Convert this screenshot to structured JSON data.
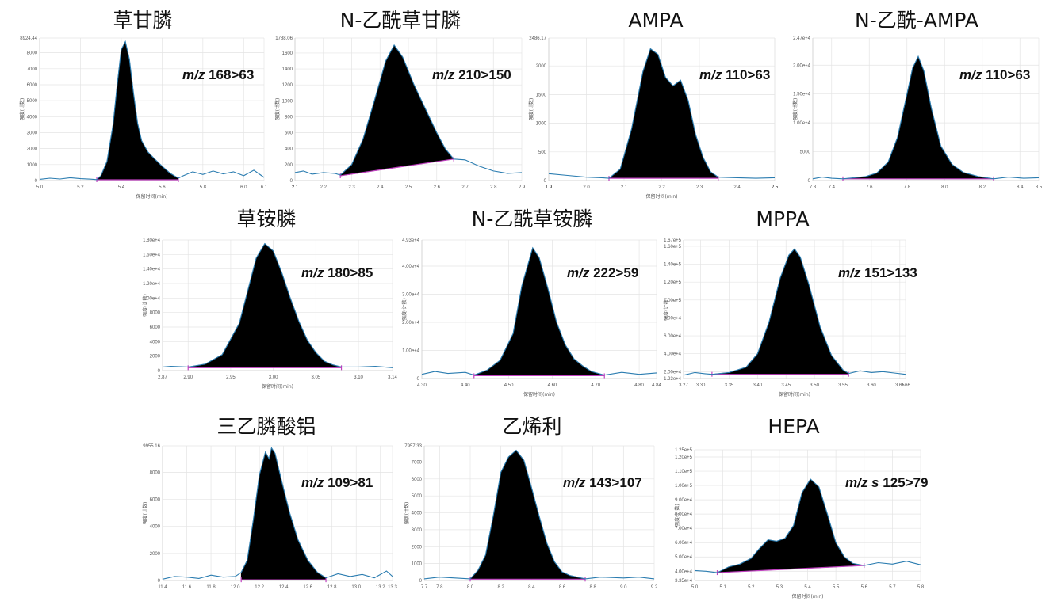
{
  "chart_data": [
    {
      "type": "line",
      "title": "草甘膦",
      "annotation_italic": "m/z",
      "annotation": "168>63",
      "xlabel": "保留时间(min)",
      "ylabel": "强度(计数)",
      "xlim": [
        5.0,
        6.1
      ],
      "ylim": [
        0,
        8924.44
      ],
      "x_ticks": [
        "5.0",
        "5.2",
        "5.4",
        "5.6",
        "5.8",
        "6.0",
        "6.1"
      ],
      "y_ticks": [
        "0",
        "1000",
        "2000",
        "3000",
        "4000",
        "5000",
        "6000",
        "7000",
        "8000",
        "8924.44"
      ],
      "peak": {
        "rt": 5.42,
        "height": 8700,
        "baseline": 50,
        "start": 5.28,
        "end": 5.68
      },
      "x": [
        5.0,
        5.05,
        5.1,
        5.15,
        5.2,
        5.25,
        5.28,
        5.3,
        5.33,
        5.36,
        5.38,
        5.4,
        5.42,
        5.44,
        5.46,
        5.48,
        5.5,
        5.53,
        5.56,
        5.6,
        5.64,
        5.68,
        5.7,
        5.75,
        5.8,
        5.85,
        5.9,
        5.95,
        6.0,
        6.05,
        6.1
      ],
      "y": [
        80,
        150,
        100,
        180,
        120,
        90,
        60,
        300,
        1200,
        3500,
        6000,
        8200,
        8700,
        7600,
        5500,
        3600,
        2500,
        1800,
        1400,
        900,
        450,
        150,
        280,
        550,
        380,
        600,
        420,
        550,
        300,
        650,
        200
      ]
    },
    {
      "type": "line",
      "title": "N-乙酰草甘膦",
      "annotation_italic": "m/z",
      "annotation": "210>150",
      "xlabel": "",
      "ylabel": "强度(计数)",
      "xlim": [
        2.1,
        2.9
      ],
      "ylim": [
        0,
        1788.06
      ],
      "x_ticks": [
        "2.1",
        "2.1",
        "2.2",
        "2.3",
        "2.4",
        "2.5",
        "2.6",
        "2.7",
        "2.8",
        "2.9"
      ],
      "y_ticks": [
        "0",
        "200",
        "400",
        "600",
        "800",
        "1000",
        "1200",
        "1400",
        "1600",
        "1788.06"
      ],
      "peak": {
        "rt": 2.45,
        "height": 1700,
        "baseline_start": 60,
        "baseline_end": 270,
        "start": 2.26,
        "end": 2.66
      },
      "x": [
        2.1,
        2.13,
        2.16,
        2.2,
        2.24,
        2.26,
        2.3,
        2.34,
        2.38,
        2.42,
        2.45,
        2.48,
        2.52,
        2.56,
        2.6,
        2.63,
        2.66,
        2.7,
        2.75,
        2.8,
        2.85,
        2.9
      ],
      "y": [
        100,
        120,
        80,
        100,
        90,
        70,
        200,
        520,
        1000,
        1500,
        1700,
        1550,
        1200,
        900,
        600,
        400,
        270,
        260,
        180,
        120,
        90,
        100
      ]
    },
    {
      "type": "line",
      "title": "AMPA",
      "annotation_italic": "m/z",
      "annotation": "110>63",
      "xlabel": "保留时间(min)",
      "ylabel": "强度(计数)",
      "xlim": [
        1.9,
        2.5
      ],
      "ylim": [
        0,
        2486.17
      ],
      "x_ticks": [
        "1.9",
        "1.9",
        "2.0",
        "2.1",
        "2.2",
        "2.3",
        "2.4",
        "2.5",
        "2.5"
      ],
      "y_ticks": [
        "0",
        "500",
        "1000",
        "1500",
        "2000",
        "2486.17"
      ],
      "peak": {
        "rt": 2.17,
        "height": 2300,
        "baseline": 40,
        "start": 2.06,
        "end": 2.35
      },
      "x": [
        1.9,
        1.95,
        2.0,
        2.04,
        2.06,
        2.09,
        2.12,
        2.15,
        2.17,
        2.19,
        2.21,
        2.23,
        2.25,
        2.27,
        2.29,
        2.31,
        2.33,
        2.35,
        2.4,
        2.45,
        2.5
      ],
      "y": [
        120,
        90,
        60,
        50,
        40,
        200,
        900,
        1900,
        2300,
        2200,
        1800,
        1650,
        1750,
        1400,
        800,
        400,
        150,
        60,
        50,
        40,
        50
      ]
    },
    {
      "type": "line",
      "title": "N-乙酰-AMPA",
      "annotation_italic": "m/z",
      "annotation": "110>63",
      "xlabel": "",
      "ylabel": "强度(计数)",
      "xlim": [
        7.3,
        8.5
      ],
      "ylim": [
        0,
        24700
      ],
      "x_ticks": [
        "7.3",
        "7.4",
        "7.6",
        "7.8",
        "8.0",
        "8.2",
        "8.4",
        "8.5"
      ],
      "y_ticks": [
        "0",
        "5000",
        "1.00e+4",
        "1.50e+4",
        "2.00e+4",
        "2.47e+4"
      ],
      "peak": {
        "rt": 7.86,
        "height": 21500,
        "baseline": 300,
        "start": 7.46,
        "end": 8.26
      },
      "x": [
        7.3,
        7.35,
        7.4,
        7.46,
        7.52,
        7.58,
        7.64,
        7.7,
        7.75,
        7.8,
        7.83,
        7.86,
        7.89,
        7.93,
        7.98,
        8.04,
        8.1,
        8.18,
        8.26,
        8.34,
        8.42,
        8.5
      ],
      "y": [
        300,
        600,
        400,
        300,
        500,
        700,
        1300,
        3200,
        7500,
        15000,
        19500,
        21500,
        19000,
        12500,
        6000,
        2800,
        1400,
        700,
        300,
        600,
        400,
        500
      ]
    },
    {
      "type": "line",
      "title": "草铵膦",
      "annotation_italic": "m/z",
      "annotation": "180>85",
      "xlabel": "保留时间(min)",
      "ylabel": "强度(计数)",
      "xlim": [
        2.87,
        3.14
      ],
      "ylim": [
        0,
        18000
      ],
      "x_ticks": [
        "2.87",
        "2.90",
        "2.95",
        "3.00",
        "3.05",
        "3.10",
        "3.14"
      ],
      "y_ticks": [
        "0",
        "2000",
        "4000",
        "6000",
        "8000",
        "1.00e+4",
        "1.20e+4",
        "1.40e+4",
        "1.60e+4",
        "1.80e+4"
      ],
      "peak": {
        "rt": 2.99,
        "height": 17500,
        "baseline": 400,
        "start": 2.9,
        "end": 3.08
      },
      "x": [
        2.87,
        2.88,
        2.9,
        2.92,
        2.94,
        2.96,
        2.97,
        2.98,
        2.99,
        3.0,
        3.01,
        3.02,
        3.03,
        3.04,
        3.05,
        3.06,
        3.07,
        3.08,
        3.1,
        3.12,
        3.14
      ],
      "y": [
        500,
        600,
        500,
        900,
        2200,
        6500,
        11000,
        15500,
        17500,
        16500,
        13500,
        10000,
        6800,
        4200,
        2500,
        1300,
        800,
        500,
        500,
        600,
        400
      ]
    },
    {
      "type": "line",
      "title": "N-乙酰草铵膦",
      "annotation_italic": "m/z",
      "annotation": "222>59",
      "xlabel": "保留时间(min)",
      "ylabel": "强度(计数)",
      "xlim": [
        4.3,
        4.84
      ],
      "ylim": [
        0,
        49300
      ],
      "x_ticks": [
        "4.30",
        "4.40",
        "4.50",
        "4.60",
        "4.70",
        "4.80",
        "4.84"
      ],
      "y_ticks": [
        "0",
        "1.00e+4",
        "2.00e+4",
        "3.00e+4",
        "4.00e+4",
        "4.93e+4"
      ],
      "peak": {
        "rt": 4.555,
        "height": 46500,
        "baseline": 1000,
        "start": 4.42,
        "end": 4.72
      },
      "x": [
        4.3,
        4.33,
        4.36,
        4.4,
        4.42,
        4.45,
        4.48,
        4.51,
        4.53,
        4.555,
        4.57,
        4.59,
        4.61,
        4.63,
        4.65,
        4.67,
        4.69,
        4.72,
        4.76,
        4.8,
        4.84
      ],
      "y": [
        1500,
        2500,
        1800,
        2200,
        1200,
        3000,
        6500,
        16000,
        33000,
        46500,
        43000,
        32000,
        20000,
        12000,
        7000,
        4500,
        2500,
        1200,
        2200,
        1500,
        2000
      ]
    },
    {
      "type": "line",
      "title": "MPPA",
      "annotation_italic": "m/z",
      "annotation": "151>133",
      "xlabel": "保留时间(min)",
      "ylabel": "强度(计数)",
      "xlim": [
        3.27,
        3.66
      ],
      "ylim": [
        12300,
        167000
      ],
      "x_ticks": [
        "3.27",
        "3.30",
        "3.35",
        "3.40",
        "3.45",
        "3.50",
        "3.55",
        "3.60",
        "3.65",
        "3.66"
      ],
      "y_ticks": [
        "1.23e+4",
        "2.00e+4",
        "4.00e+4",
        "6.00e+4",
        "8.00e+4",
        "1.00e+5",
        "1.20e+5",
        "1.40e+5",
        "1.60e+5",
        "1.67e+5"
      ],
      "peak": {
        "rt": 3.465,
        "height": 157000,
        "baseline": 17000,
        "start": 3.32,
        "end": 3.56
      },
      "x": [
        3.27,
        3.29,
        3.31,
        3.32,
        3.35,
        3.38,
        3.4,
        3.42,
        3.44,
        3.455,
        3.465,
        3.475,
        3.49,
        3.51,
        3.53,
        3.55,
        3.56,
        3.58,
        3.6,
        3.62,
        3.64,
        3.66
      ],
      "y": [
        16000,
        19000,
        17500,
        17000,
        19000,
        25000,
        40000,
        75000,
        125000,
        150000,
        157000,
        148000,
        118000,
        70000,
        38000,
        22000,
        18000,
        21000,
        19000,
        20000,
        18500,
        17000
      ]
    },
    {
      "type": "line",
      "title": "三乙膦酸铝",
      "annotation_italic": "m/z",
      "annotation": "109>81",
      "xlabel": "",
      "ylabel": "强度(计数)",
      "xlim": [
        11.4,
        13.3
      ],
      "ylim": [
        0,
        9955.16
      ],
      "x_ticks": [
        "11.4",
        "11.6",
        "11.8",
        "12.0",
        "12.2",
        "12.4",
        "12.6",
        "12.8",
        "13.0",
        "13.2",
        "13.3"
      ],
      "y_ticks": [
        "0",
        "2000",
        "4000",
        "6000",
        "8000",
        "9955.16"
      ],
      "peak": {
        "rt": 12.3,
        "height": 9800,
        "baseline": 50,
        "start": 12.05,
        "end": 12.75
      },
      "x": [
        11.4,
        11.5,
        11.6,
        11.7,
        11.8,
        11.9,
        12.0,
        12.05,
        12.1,
        12.15,
        12.2,
        12.25,
        12.28,
        12.3,
        12.33,
        12.38,
        12.45,
        12.52,
        12.6,
        12.68,
        12.75,
        12.85,
        12.95,
        13.05,
        13.15,
        13.25,
        13.3
      ],
      "y": [
        100,
        300,
        250,
        150,
        400,
        250,
        300,
        600,
        1500,
        4500,
        7800,
        9500,
        9000,
        9800,
        9400,
        7500,
        5000,
        3000,
        1500,
        600,
        200,
        500,
        300,
        450,
        200,
        700,
        300
      ]
    },
    {
      "type": "line",
      "title": "乙烯利",
      "annotation_italic": "m/z",
      "annotation": "143>107",
      "xlabel": "",
      "ylabel": "强度(计数)",
      "xlim": [
        7.7,
        9.2
      ],
      "ylim": [
        0,
        7957.33
      ],
      "x_ticks": [
        "7.7",
        "7.8",
        "8.0",
        "8.2",
        "8.4",
        "8.6",
        "8.8",
        "9.0",
        "9.2"
      ],
      "y_ticks": [
        "0",
        "1000",
        "2000",
        "3000",
        "4000",
        "5000",
        "6000",
        "7000",
        "7957.33"
      ],
      "peak": {
        "rt": 8.3,
        "height": 7700,
        "baseline": 80,
        "start": 8.0,
        "end": 8.75
      },
      "x": [
        7.7,
        7.8,
        7.9,
        8.0,
        8.05,
        8.1,
        8.15,
        8.2,
        8.25,
        8.3,
        8.35,
        8.4,
        8.45,
        8.5,
        8.55,
        8.6,
        8.65,
        8.75,
        8.85,
        9.0,
        9.1,
        9.2
      ],
      "y": [
        100,
        200,
        150,
        100,
        600,
        1500,
        3800,
        6400,
        7300,
        7700,
        7100,
        5500,
        3800,
        2200,
        1100,
        500,
        300,
        100,
        200,
        150,
        200,
        100
      ]
    },
    {
      "type": "line",
      "title": "HEPA",
      "annotation_italic": "m/z s",
      "annotation": "125>79",
      "xlabel": "保留时间(min)",
      "ylabel": "强度(计数)",
      "xlim": [
        5.0,
        5.8
      ],
      "ylim": [
        33500,
        125000
      ],
      "x_ticks": [
        "5.0",
        "5.1",
        "5.2",
        "5.3",
        "5.4",
        "5.5",
        "5.6",
        "5.7",
        "5.8"
      ],
      "y_ticks": [
        "3.35e+4",
        "4.00e+4",
        "5.00e+4",
        "6.00e+4",
        "7.00e+4",
        "8.00e+4",
        "9.00e+4",
        "1.00e+5",
        "1.10e+5",
        "1.20e+5",
        "1.25e+5"
      ],
      "peak": {
        "rt": 5.41,
        "height": 104500,
        "baseline_start": 39000,
        "baseline_end": 44000,
        "start": 5.08,
        "end": 5.6
      },
      "x": [
        5.0,
        5.04,
        5.08,
        5.12,
        5.16,
        5.2,
        5.23,
        5.26,
        5.29,
        5.32,
        5.35,
        5.38,
        5.41,
        5.44,
        5.47,
        5.5,
        5.53,
        5.56,
        5.6,
        5.65,
        5.7,
        5.75,
        5.8
      ],
      "y": [
        40500,
        40000,
        39000,
        43000,
        45000,
        49000,
        56000,
        62000,
        61000,
        63000,
        72000,
        95000,
        104500,
        99000,
        80000,
        60000,
        50000,
        45500,
        44000,
        46000,
        45000,
        47000,
        44500
      ]
    }
  ]
}
